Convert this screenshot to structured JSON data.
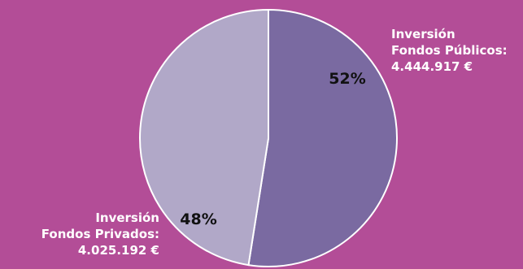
{
  "chart_data": {
    "type": "pie",
    "slices": [
      {
        "name_lines": [
          "Inversión",
          "Fondos Públicos:",
          "4.444.917 €"
        ],
        "value": 4444917,
        "percent_label": "52%",
        "color": "#7a6aa1"
      },
      {
        "name_lines": [
          "Inversión",
          "Fondos Privados:",
          "4.025.192 €"
        ],
        "value": 4025192,
        "percent_label": "48%",
        "color": "#b1a8c8"
      }
    ],
    "background": "#b34d97",
    "slice_border": "#ffffff"
  }
}
